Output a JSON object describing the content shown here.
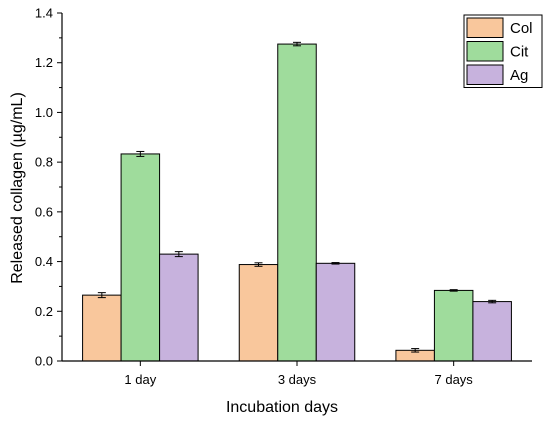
{
  "chart_data": {
    "type": "bar",
    "title": "",
    "xlabel": "Incubation days",
    "ylabel": "Released collagen (µg/mL)",
    "categories": [
      "1 day",
      "3 days",
      "7 days"
    ],
    "ylim": [
      0,
      1.4
    ],
    "yticks": [
      "0.0",
      "0.2",
      "0.4",
      "0.6",
      "0.8",
      "1.0",
      "1.2",
      "1.4"
    ],
    "series": [
      {
        "name": "Col",
        "values": [
          0.265,
          0.388,
          0.043
        ],
        "errors": [
          0.01,
          0.007,
          0.007
        ],
        "color": "#f9c79c"
      },
      {
        "name": "Cit",
        "values": [
          0.833,
          1.275,
          0.284
        ],
        "errors": [
          0.01,
          0.007,
          0.003
        ],
        "color": "#9fdc9c"
      },
      {
        "name": "Ag",
        "values": [
          0.43,
          0.393,
          0.239
        ],
        "errors": [
          0.01,
          0.003,
          0.005
        ],
        "color": "#c7b2dd"
      }
    ],
    "grid": false,
    "legend": "top-right"
  }
}
